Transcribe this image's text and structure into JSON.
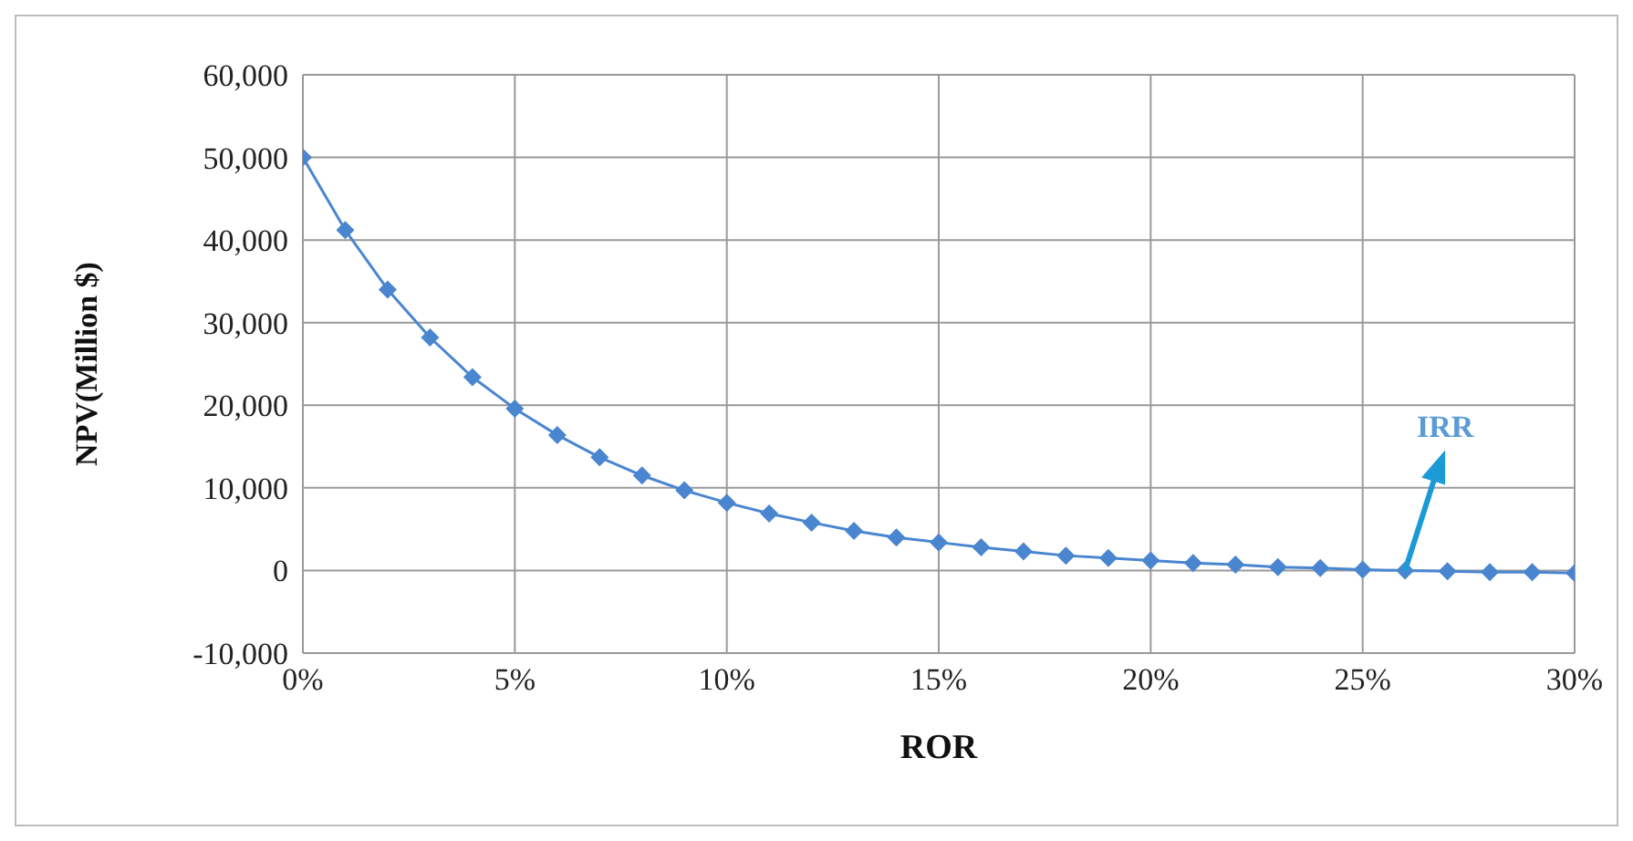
{
  "chart_data": {
    "type": "line",
    "xlabel": "ROR",
    "ylabel": "NPV(Million $)",
    "x": [
      0,
      1,
      2,
      3,
      4,
      5,
      6,
      7,
      8,
      9,
      10,
      11,
      12,
      13,
      14,
      15,
      16,
      17,
      18,
      19,
      20,
      21,
      22,
      23,
      24,
      25,
      26,
      27,
      28,
      29,
      30
    ],
    "series": [
      {
        "color": "#4a86d0",
        "values": [
          50000,
          41200,
          34000,
          28200,
          23400,
          19600,
          16400,
          13700,
          11500,
          9700,
          8200,
          6900,
          5800,
          4800,
          4000,
          3400,
          2800,
          2300,
          1800,
          1500,
          1200,
          900,
          700,
          400,
          300,
          100,
          0,
          -100,
          -200,
          -200,
          -300
        ]
      }
    ],
    "xlim": [
      0,
      30
    ],
    "xticks": [
      {
        "value": 0,
        "label": "0%"
      },
      {
        "value": 5,
        "label": "5%"
      },
      {
        "value": 10,
        "label": "10%"
      },
      {
        "value": 15,
        "label": "15%"
      },
      {
        "value": 20,
        "label": "20%"
      },
      {
        "value": 25,
        "label": "25%"
      },
      {
        "value": 30,
        "label": "30%"
      }
    ],
    "ylim": [
      -10000,
      60000
    ],
    "yticks": [
      {
        "value": -10000,
        "label": "-10,000"
      },
      {
        "value": 0,
        "label": "0"
      },
      {
        "value": 10000,
        "label": "10,000"
      },
      {
        "value": 20000,
        "label": "20,000"
      },
      {
        "value": 30000,
        "label": "30,000"
      },
      {
        "value": 40000,
        "label": "40,000"
      },
      {
        "value": 50000,
        "label": "50,000"
      },
      {
        "value": 60000,
        "label": "60,000"
      }
    ],
    "grid": true,
    "marker": "diamond",
    "line_style": "solid",
    "legend": false,
    "annotations": [
      {
        "text": "IRR",
        "x": 26,
        "y": 0
      }
    ]
  }
}
